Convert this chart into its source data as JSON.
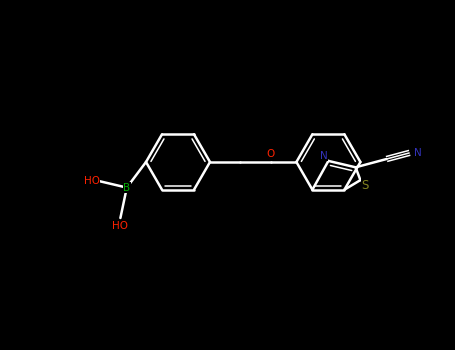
{
  "bg": "#000000",
  "bond_color": "#ffffff",
  "atom_colors": {
    "O": "#ff2200",
    "N": "#3333bb",
    "S": "#808020",
    "B": "#00aa00"
  },
  "figsize": [
    4.55,
    3.5
  ],
  "dpi": 100
}
